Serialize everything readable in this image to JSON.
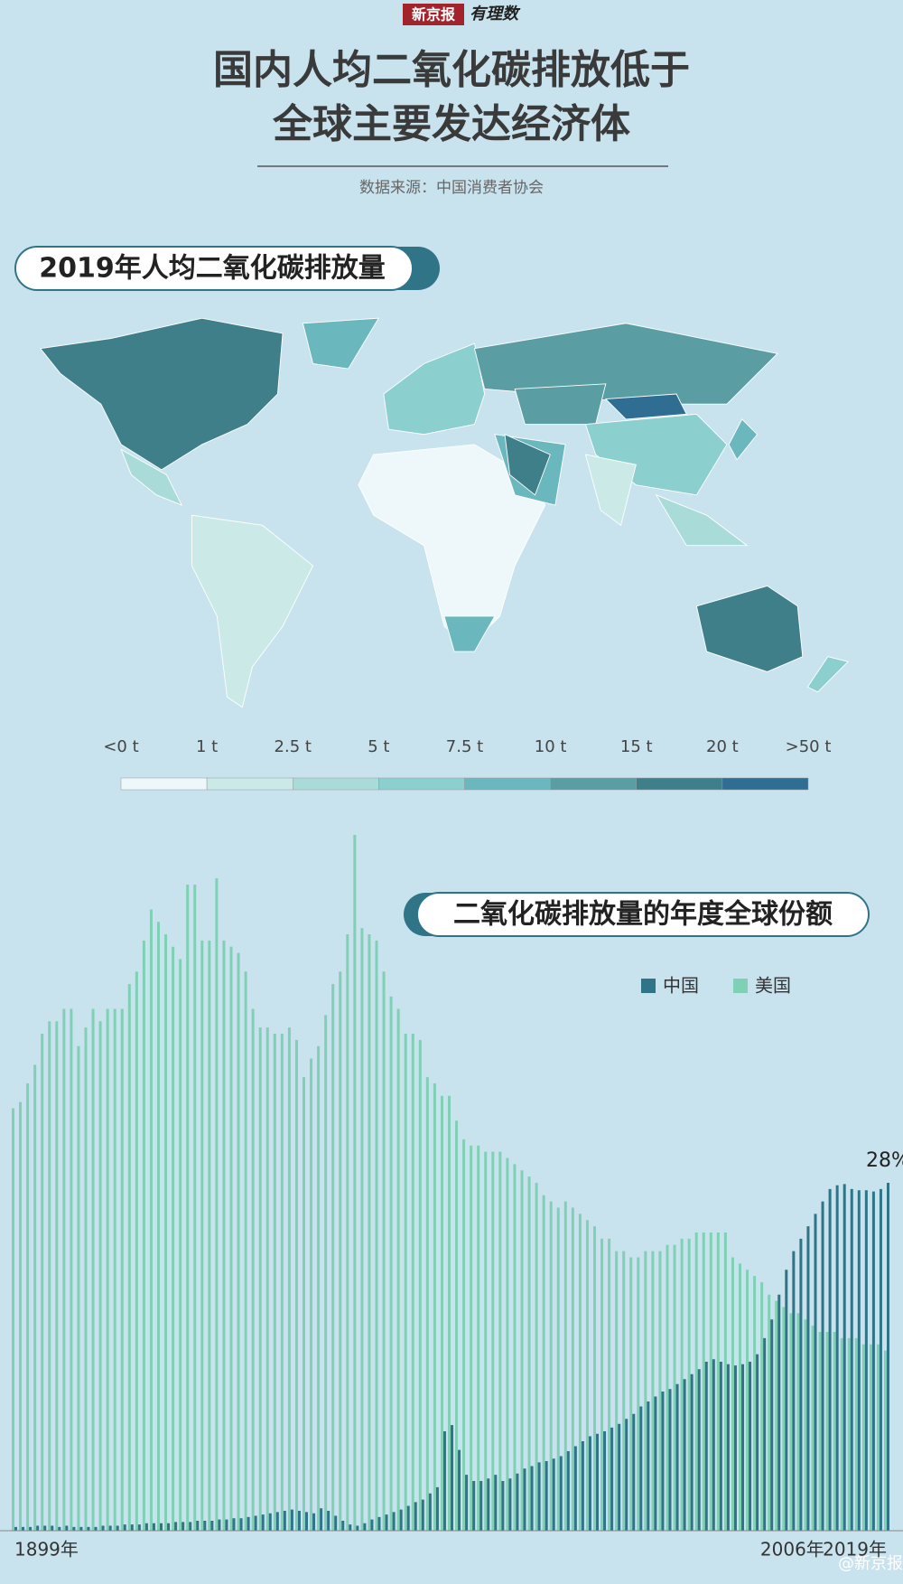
{
  "header": {
    "brand": "新京报",
    "logo": "有理数",
    "title_lines": [
      "国内人均二氧化碳排放低于",
      "全球主要发达经济体"
    ],
    "source": "数据来源：中国消费者协会"
  },
  "map": {
    "title": "2019年人均二氧化碳排放量",
    "legend_labels": [
      "<0 t",
      "1 t",
      "2.5 t",
      "5 t",
      "7.5 t",
      "10 t",
      "15 t",
      "20 t",
      ">50 t"
    ],
    "legend_colors": [
      "#eef7f9",
      "#cbe9e6",
      "#a9dcd9",
      "#8ccfcf",
      "#6ab8bd",
      "#5a9ea3",
      "#3f7f8a",
      "#2f6d93"
    ]
  },
  "chart_data": {
    "type": "bar",
    "title": "二氧化碳排放量的年度全球份额",
    "categories": [
      "1899年",
      null,
      null,
      null,
      null,
      null,
      null,
      null,
      null,
      null,
      null,
      null,
      null,
      null,
      null,
      null,
      null,
      null,
      null,
      null,
      null,
      null,
      null,
      null,
      null,
      null,
      null,
      null,
      null,
      null,
      null,
      null,
      null,
      null,
      null,
      null,
      null,
      null,
      null,
      null,
      null,
      null,
      null,
      null,
      null,
      null,
      null,
      null,
      null,
      null,
      null,
      null,
      null,
      null,
      null,
      null,
      null,
      null,
      null,
      null,
      null,
      null,
      null,
      null,
      null,
      null,
      null,
      null,
      null,
      null,
      null,
      null,
      null,
      null,
      null,
      null,
      null,
      null,
      null,
      null,
      null,
      null,
      null,
      null,
      null,
      null,
      null,
      null,
      null,
      null,
      null,
      null,
      null,
      null,
      null,
      null,
      null,
      null,
      null,
      null,
      null,
      null,
      null,
      null,
      null,
      null,
      null,
      "2006年",
      null,
      null,
      null,
      null,
      null,
      null,
      null,
      null,
      null,
      null,
      null,
      null,
      "2019年"
    ],
    "series": [
      {
        "name": "中国",
        "color": "#2f7487",
        "values": [
          0.3,
          0.3,
          0.3,
          0.4,
          0.4,
          0.4,
          0.3,
          0.4,
          0.3,
          0.3,
          0.3,
          0.3,
          0.4,
          0.4,
          0.4,
          0.5,
          0.5,
          0.5,
          0.6,
          0.6,
          0.6,
          0.6,
          0.7,
          0.7,
          0.7,
          0.8,
          0.8,
          0.8,
          0.9,
          0.9,
          1.0,
          1.0,
          1.1,
          1.2,
          1.3,
          1.4,
          1.5,
          1.6,
          1.7,
          1.6,
          1.5,
          1.4,
          1.8,
          1.6,
          1.2,
          0.8,
          0.5,
          0.4,
          0.6,
          0.9,
          1.1,
          1.3,
          1.5,
          1.7,
          2.0,
          2.3,
          2.5,
          3.0,
          3.5,
          8.0,
          8.5,
          6.5,
          4.5,
          4.0,
          4.0,
          4.2,
          4.5,
          4.0,
          4.2,
          4.6,
          5.0,
          5.2,
          5.5,
          5.6,
          5.8,
          6.0,
          6.4,
          6.8,
          7.2,
          7.6,
          7.8,
          8.0,
          8.3,
          8.6,
          9.0,
          9.4,
          10.0,
          10.4,
          10.8,
          11.2,
          11.4,
          11.8,
          12.2,
          12.6,
          13.0,
          13.6,
          13.8,
          13.6,
          13.4,
          13.3,
          13.4,
          13.6,
          14.2,
          15.5,
          17.0,
          19.0,
          21.0,
          22.5,
          23.5,
          24.5,
          25.5,
          26.5,
          27.5,
          27.8,
          27.9,
          27.5,
          27.4,
          27.4,
          27.3,
          27.5,
          28
        ],
        "value_labels": [
          null,
          null,
          null,
          null,
          null,
          null,
          null,
          null,
          null,
          null,
          null,
          null,
          null,
          null,
          null,
          null,
          null,
          null,
          null,
          null,
          null,
          null,
          null,
          null,
          null,
          null,
          null,
          null,
          null,
          null,
          null,
          null,
          null,
          null,
          null,
          null,
          null,
          null,
          null,
          null,
          null,
          null,
          null,
          null,
          null,
          null,
          null,
          null,
          null,
          null,
          null,
          null,
          null,
          null,
          null,
          null,
          null,
          null,
          null,
          null,
          null,
          null,
          null,
          null,
          null,
          null,
          null,
          null,
          null,
          null,
          null,
          null,
          null,
          null,
          null,
          null,
          null,
          null,
          null,
          null,
          null,
          null,
          null,
          null,
          null,
          null,
          null,
          null,
          null,
          null,
          null,
          null,
          null,
          null,
          null,
          null,
          null,
          null,
          null,
          null,
          null,
          null,
          null,
          null,
          null,
          null,
          null,
          null,
          null,
          null,
          null,
          null,
          null,
          null,
          null,
          null,
          null,
          null,
          null,
          null,
          "28%"
        ]
      },
      {
        "name": "美国",
        "color": "#7fd0b4",
        "values": [
          34,
          34.5,
          36,
          37.5,
          40,
          41,
          41,
          42,
          42,
          39,
          40.5,
          42,
          41,
          42,
          42,
          42,
          44,
          45,
          47.5,
          50,
          49,
          48,
          47,
          46,
          52,
          52,
          47.5,
          47.5,
          52.5,
          47.5,
          47,
          46.5,
          45,
          42,
          40.5,
          40.5,
          40,
          40,
          40.5,
          39.5,
          36.5,
          38,
          39,
          41.5,
          44,
          45,
          48,
          56,
          48.5,
          48,
          47.5,
          45,
          43,
          42,
          40,
          40,
          39.5,
          36.5,
          36,
          35,
          35,
          33,
          31.5,
          31,
          31,
          30.5,
          30.5,
          30.5,
          30,
          29.5,
          29,
          28.5,
          28,
          27,
          26.5,
          26,
          26.5,
          26,
          25.5,
          25,
          24.5,
          23.5,
          23.5,
          22.5,
          22.5,
          22,
          22,
          22.5,
          22.5,
          22.5,
          23,
          23,
          23.5,
          23.5,
          24,
          24,
          24,
          24,
          24,
          22,
          21.5,
          21,
          20.5,
          20,
          19,
          18.5,
          18,
          17.5,
          17.5,
          17,
          16.5,
          16,
          16,
          16,
          15.5,
          15.5,
          15.5,
          15,
          15,
          15,
          14.5
        ]
      }
    ],
    "ylim": [
      0,
      60
    ]
  },
  "watermark": "@新京报"
}
